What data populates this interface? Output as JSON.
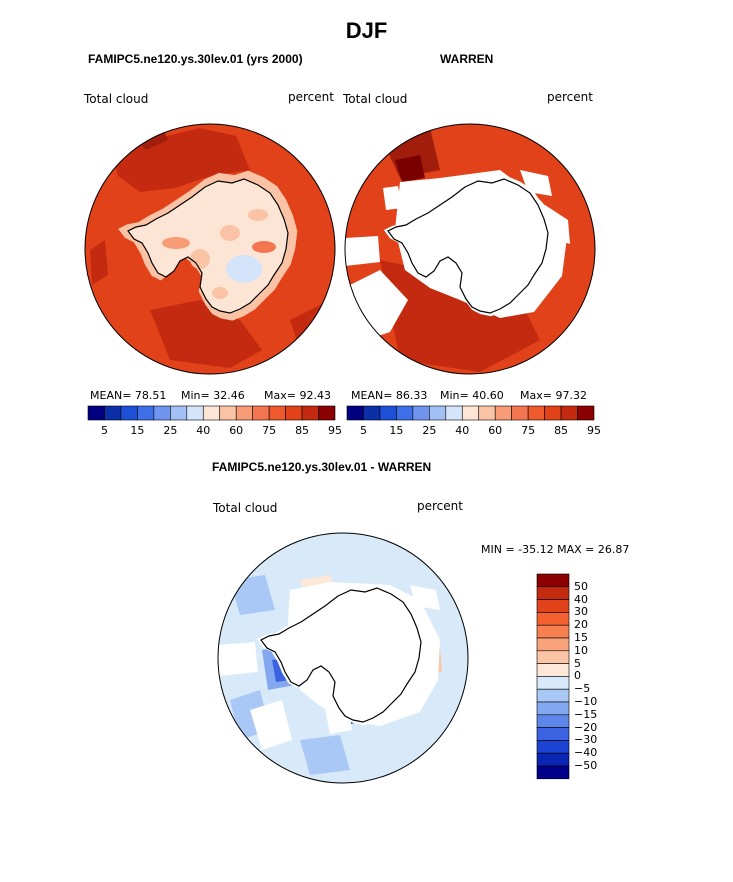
{
  "title": "DJF",
  "panels": [
    {
      "case_name": "FAMIPC5.ne120.ys.30lev.01 (yrs 2000)",
      "variable": "Total cloud",
      "units": "percent",
      "stats": {
        "mean": "MEAN= 78.51",
        "min": "Min= 32.46",
        "max": "Max= 92.43"
      }
    },
    {
      "case_name": "WARREN",
      "variable": "Total cloud",
      "units": "percent",
      "stats": {
        "mean": "MEAN= 86.33",
        "min": "Min= 40.60",
        "max": "Max= 97.32"
      }
    },
    {
      "case_name": "FAMIPC5.ne120.ys.30lev.01 - WARREN",
      "variable": "Total cloud",
      "units": "percent",
      "stats": {
        "minmax": "MIN = -35.12  MAX =  26.87"
      }
    }
  ],
  "abs_colorbar": {
    "colors": [
      "#000080",
      "#0a2fa6",
      "#1c50d6",
      "#3f6fe8",
      "#6f95ef",
      "#a3bff5",
      "#d4e4fa",
      "#fde5d5",
      "#fbc3a6",
      "#f89c77",
      "#f47650",
      "#ee5a2d",
      "#e2421a",
      "#c32a0f",
      "#8b0000"
    ],
    "labels": [
      "5",
      "15",
      "25",
      "40",
      "60",
      "75",
      "85",
      "95"
    ]
  },
  "diff_colorbar": {
    "colors": [
      "#8b0000",
      "#c32a0f",
      "#e2421a",
      "#f56030",
      "#f6804f",
      "#f9a37a",
      "#fbc5a6",
      "#fde8d8",
      "#d8e9fa",
      "#a9c8f5",
      "#84a8f0",
      "#5d86ea",
      "#3a62e1",
      "#1c43d4",
      "#0b25b3",
      "#00008b"
    ],
    "labels": [
      "50",
      "40",
      "30",
      "20",
      "15",
      "10",
      "5",
      "0",
      "−5",
      "−10",
      "−15",
      "−20",
      "−30",
      "−40",
      "−50"
    ]
  }
}
